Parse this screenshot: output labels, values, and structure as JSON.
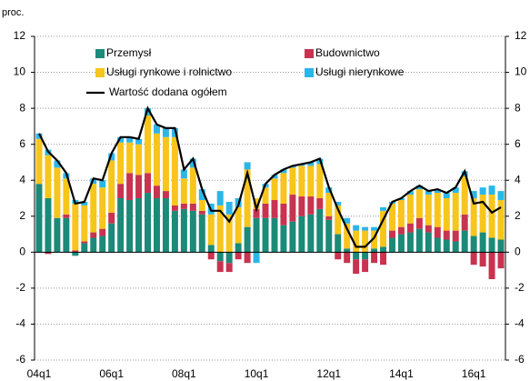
{
  "chart_data": {
    "type": "stacked_bar_line",
    "ylabel": "proc.",
    "categories": [
      "04q1",
      null,
      null,
      null,
      null,
      null,
      null,
      null,
      "06q1",
      null,
      null,
      null,
      null,
      null,
      null,
      null,
      "08q1",
      null,
      null,
      null,
      null,
      null,
      null,
      null,
      "10q1",
      null,
      null,
      null,
      null,
      null,
      null,
      null,
      "12q1",
      null,
      null,
      null,
      null,
      null,
      null,
      null,
      "14q1",
      null,
      null,
      null,
      null,
      null,
      null,
      null,
      "16q1",
      null,
      null,
      null
    ],
    "series": [
      {
        "name": "Przemysł",
        "color": "#1b8a78",
        "values": [
          3.8,
          3.0,
          1.9,
          1.9,
          -0.2,
          0.5,
          0.8,
          0.9,
          1.6,
          3.0,
          2.9,
          3.0,
          3.3,
          3.0,
          3.0,
          2.3,
          2.4,
          2.3,
          2.1,
          0.4,
          -0.5,
          -0.6,
          0.5,
          1.4,
          1.9,
          1.9,
          1.9,
          1.5,
          1.7,
          2.0,
          2.1,
          2.4,
          1.8,
          1.0,
          0.2,
          -0.4,
          -0.4,
          0.2,
          0.3,
          0.8,
          1.0,
          1.1,
          1.3,
          1.1,
          0.8,
          0.7,
          0.6,
          1.2,
          0.9,
          1.1,
          0.8,
          0.7
        ]
      },
      {
        "name": "Budownictwo",
        "color": "#c8334f",
        "values": [
          0.0,
          -0.1,
          0.0,
          0.2,
          0.1,
          0.1,
          0.3,
          0.4,
          0.6,
          0.8,
          1.5,
          1.3,
          1.1,
          0.7,
          0.4,
          0.3,
          0.3,
          0.4,
          0.2,
          -0.4,
          -0.6,
          -0.5,
          -0.4,
          -0.6,
          0.5,
          0.8,
          1.0,
          1.2,
          1.5,
          1.1,
          1.0,
          0.6,
          0.2,
          -0.4,
          -0.6,
          -0.8,
          -0.7,
          -0.6,
          -0.7,
          0.4,
          0.4,
          0.5,
          0.6,
          0.4,
          0.6,
          0.5,
          0.6,
          0.9,
          -0.7,
          -0.8,
          -1.5,
          -0.9
        ]
      },
      {
        "name": "Usługi rynkowe i rolnictwo",
        "color": "#f7c51c",
        "values": [
          2.5,
          2.4,
          2.8,
          2.0,
          2.6,
          2.0,
          2.7,
          2.3,
          2.9,
          2.3,
          1.7,
          1.7,
          3.2,
          2.9,
          3.0,
          3.8,
          1.4,
          2.0,
          0.6,
          1.7,
          2.6,
          2.1,
          2.0,
          3.2,
          0.6,
          0.9,
          1.2,
          1.7,
          1.5,
          1.7,
          1.7,
          1.9,
          1.3,
          1.6,
          1.4,
          1.2,
          1.2,
          1.0,
          2.0,
          1.5,
          1.5,
          1.6,
          1.6,
          1.7,
          1.9,
          1.8,
          2.1,
          2.1,
          2.1,
          2.1,
          2.4,
          2.2
        ]
      },
      {
        "name": "Usługi nierynkowe",
        "color": "#2bb6e8",
        "values": [
          0.3,
          0.3,
          0.4,
          0.3,
          0.2,
          0.2,
          0.3,
          0.4,
          0.4,
          0.3,
          0.3,
          0.3,
          0.4,
          0.5,
          0.5,
          0.5,
          0.5,
          0.5,
          0.6,
          0.6,
          0.8,
          0.7,
          0.5,
          0.4,
          -0.6,
          0.2,
          0.2,
          0.2,
          0.1,
          0.1,
          0.2,
          0.3,
          0.3,
          0.2,
          0.3,
          0.3,
          0.2,
          0.2,
          0.2,
          0.1,
          0.1,
          0.2,
          0.2,
          0.2,
          0.2,
          0.3,
          0.3,
          0.3,
          0.4,
          0.4,
          0.5,
          0.5
        ]
      }
    ],
    "line": {
      "name": "Wartość dodana ogółem",
      "color": "#000000",
      "values": [
        6.6,
        5.6,
        5.1,
        4.4,
        2.7,
        2.8,
        4.1,
        4.0,
        5.5,
        6.4,
        6.4,
        6.3,
        8.0,
        7.1,
        6.9,
        6.9,
        4.6,
        5.2,
        3.5,
        2.3,
        2.3,
        1.7,
        2.6,
        4.4,
        2.4,
        3.8,
        4.3,
        4.6,
        4.8,
        4.9,
        5.0,
        5.2,
        3.6,
        2.4,
        1.3,
        0.3,
        0.3,
        0.8,
        1.8,
        2.8,
        3.0,
        3.4,
        3.7,
        3.4,
        3.5,
        3.3,
        3.6,
        4.5,
        2.7,
        2.8,
        2.2,
        2.5
      ]
    },
    "ylim": [
      -6,
      12
    ],
    "yticks": [
      -6,
      -4,
      -2,
      0,
      2,
      4,
      6,
      8,
      10,
      12
    ],
    "grid": true,
    "right_axis": true
  }
}
